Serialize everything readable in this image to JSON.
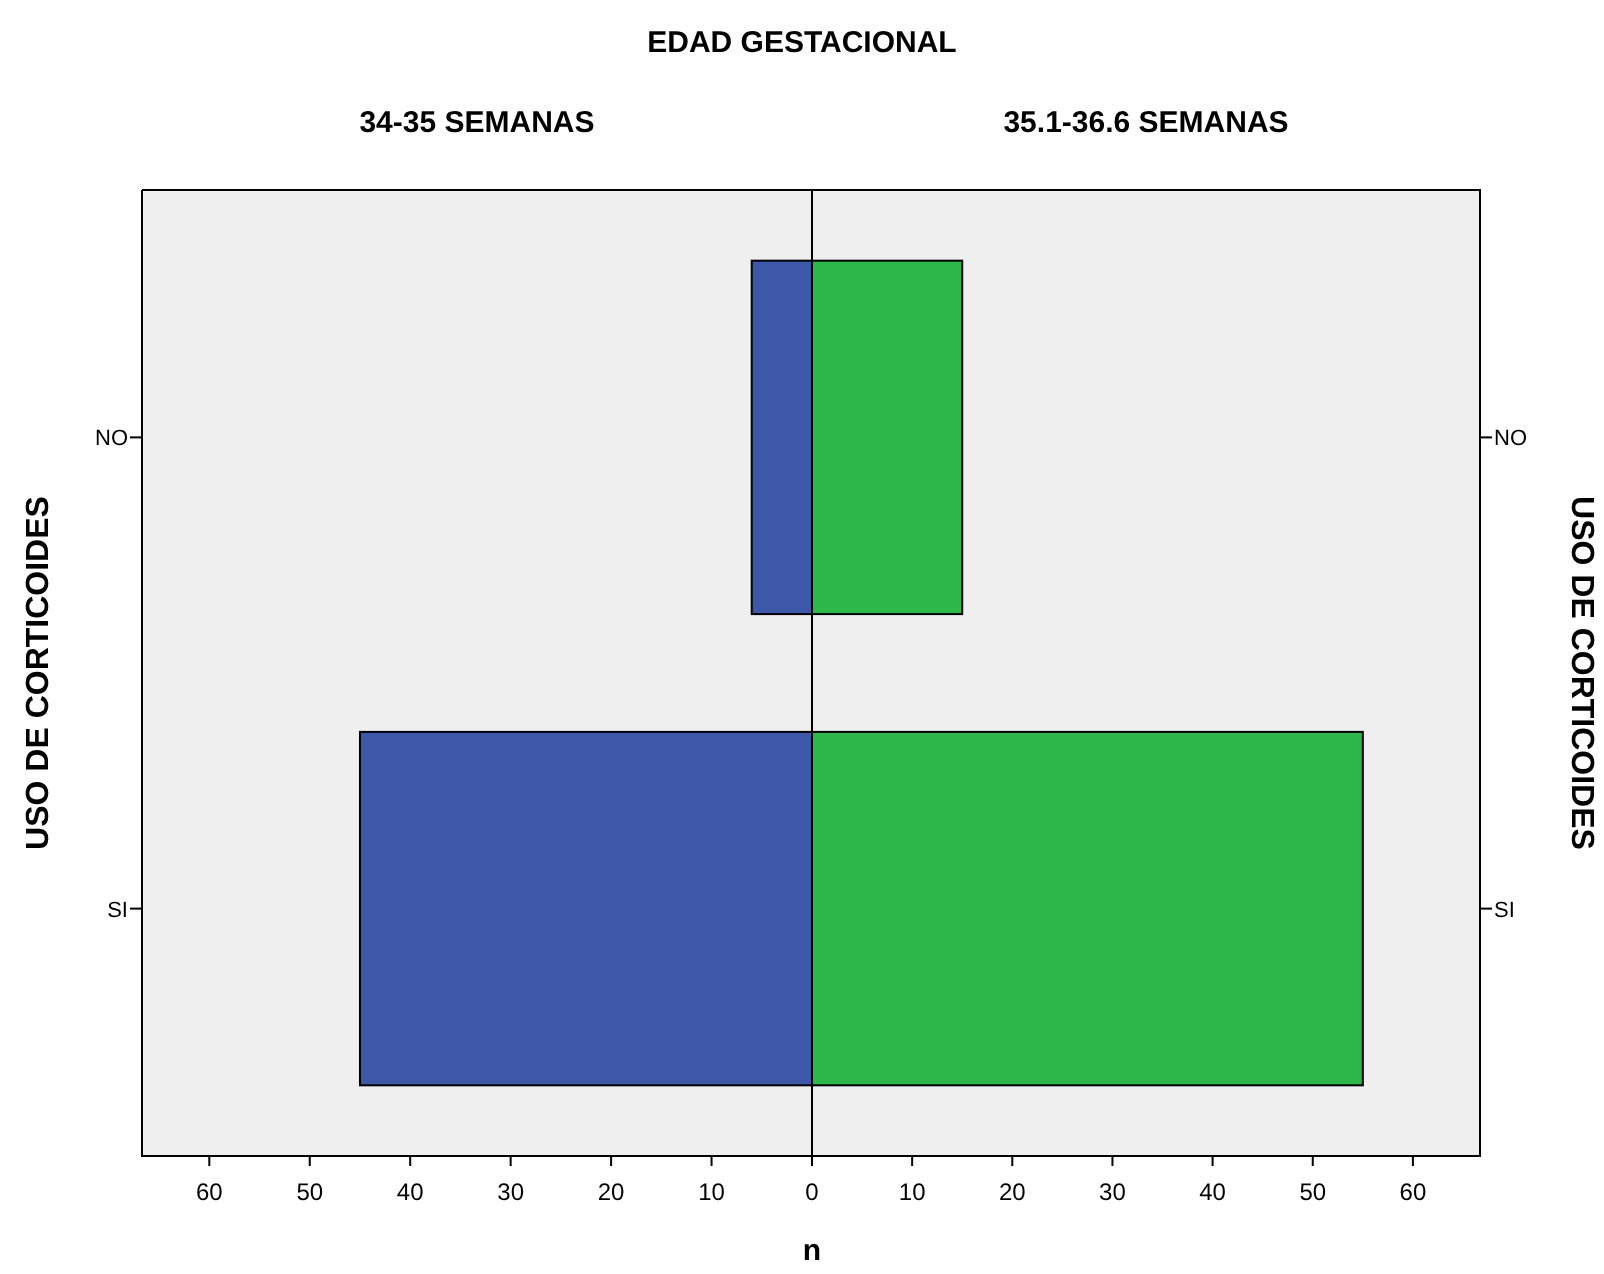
{
  "chart_data": [
    {
      "type": "bar",
      "orientation": "horizontal",
      "title": "EDAD GESTACIONAL",
      "subtitle": "34-35 SEMANAS",
      "xlabel": "n",
      "ylabel": "USO DE CORTICOIDES",
      "categories": [
        "NO",
        "SI"
      ],
      "series": [
        {
          "color": "#3e58a9",
          "values": [
            6,
            45
          ]
        }
      ],
      "xlim": [
        66.7,
        0
      ],
      "xticks": [
        60,
        50,
        40,
        30,
        20,
        10,
        0
      ],
      "grid": false
    },
    {
      "type": "bar",
      "orientation": "horizontal",
      "subtitle": "35.1-36.6 SEMANAS",
      "ylabel": "USO DE CORTICOIDES",
      "categories": [
        "NO",
        "SI"
      ],
      "series": [
        {
          "color": "#2eb84a",
          "values": [
            15,
            55
          ]
        }
      ],
      "xlim": [
        0,
        66.7
      ],
      "xticks": [
        10,
        20,
        30,
        40,
        50,
        60
      ],
      "grid": false
    }
  ]
}
